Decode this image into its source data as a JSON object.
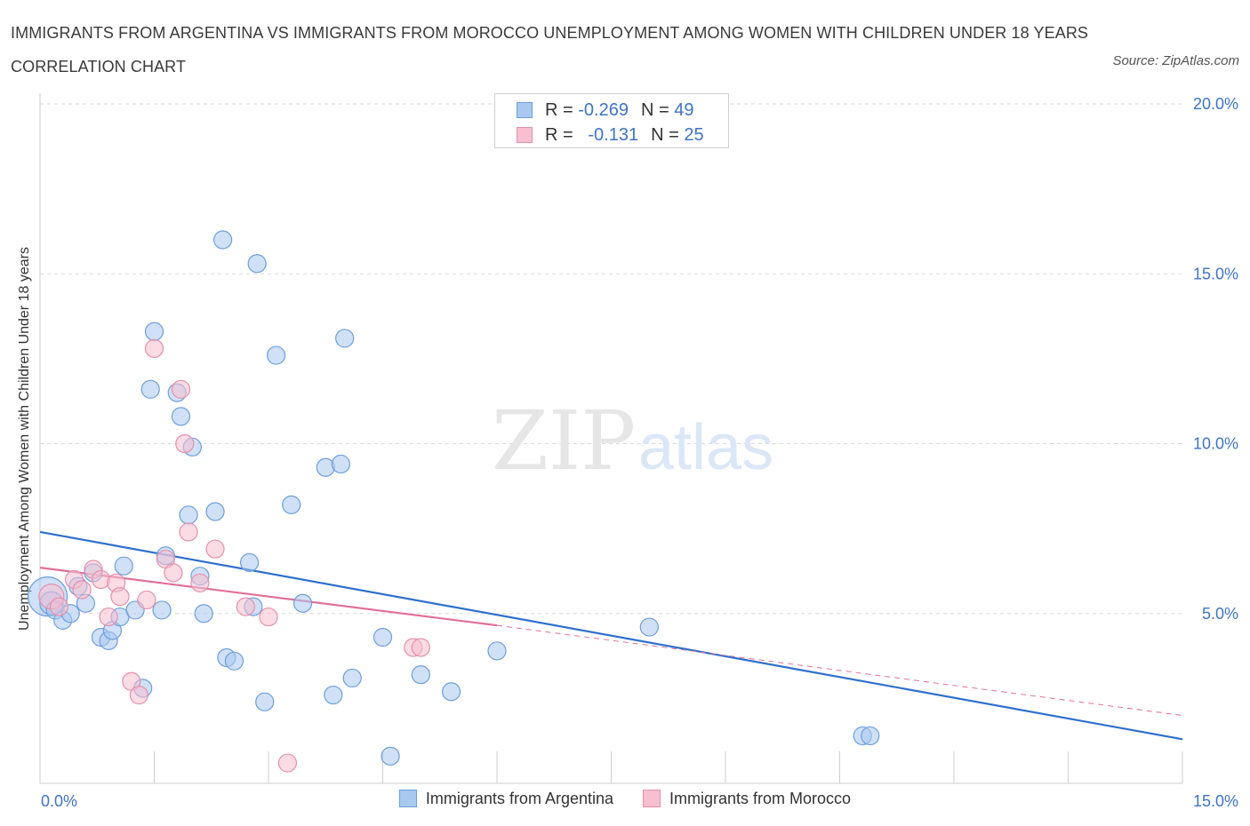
{
  "title": "IMMIGRANTS FROM ARGENTINA VS IMMIGRANTS FROM MOROCCO UNEMPLOYMENT AMONG WOMEN WITH CHILDREN UNDER 18 YEARS CORRELATION CHART",
  "source": "Source: ZipAtlas.com",
  "watermark": {
    "zip": "ZIP",
    "atlas": "atlas"
  },
  "correlation_legend": [
    {
      "r_label": "R =",
      "r_value": "-0.269",
      "n_label": "N =",
      "n_value": "49",
      "color": "#a9c8f0",
      "border": "#6d9edb"
    },
    {
      "r_label": "R =",
      "r_value": "-0.131",
      "n_label": "N =",
      "n_value": "25",
      "color": "#f7bfd0",
      "border": "#e490ab"
    }
  ],
  "bottom_legend": [
    {
      "label": "Immigrants from Argentina",
      "color": "#a9c8f0",
      "border": "#6d9edb"
    },
    {
      "label": "Immigrants from Morocco",
      "color": "#f7bfd0",
      "border": "#e490ab"
    }
  ],
  "chart_data": {
    "type": "scatter",
    "xlabel": "",
    "ylabel": "Unemployment Among Women with Children Under 18 years",
    "xlim": [
      0,
      15
    ],
    "ylim": [
      0,
      20
    ],
    "x_tick_labels": [
      {
        "value": 0,
        "label": "0.0%"
      },
      {
        "value": 15,
        "label": "15.0%"
      }
    ],
    "y_tick_labels": [
      {
        "value": 5,
        "label": "5.0%"
      },
      {
        "value": 10,
        "label": "10.0%"
      },
      {
        "value": 15,
        "label": "15.0%"
      },
      {
        "value": 20,
        "label": "20.0%"
      }
    ],
    "x_minor_ticks": [
      1.5,
      3.0,
      4.5,
      6.0,
      7.5,
      9.0,
      10.5,
      12.0,
      13.5,
      15.0
    ],
    "grid": true,
    "series": [
      {
        "name": "Immigrants from Argentina",
        "color": "#a9c8f0",
        "stroke": "#6d9edb",
        "trend_color": "#2f6fcd",
        "trend": {
          "x": [
            0,
            15
          ],
          "y": [
            7.4,
            1.3
          ]
        },
        "points": [
          [
            0.1,
            5.5
          ],
          [
            0.15,
            5.3
          ],
          [
            0.2,
            5.1
          ],
          [
            0.3,
            4.8
          ],
          [
            0.4,
            5.0
          ],
          [
            0.5,
            5.8
          ],
          [
            0.6,
            5.3
          ],
          [
            0.7,
            6.2
          ],
          [
            0.8,
            4.3
          ],
          [
            0.9,
            4.2
          ],
          [
            0.95,
            4.5
          ],
          [
            1.05,
            4.9
          ],
          [
            1.1,
            6.4
          ],
          [
            1.25,
            5.1
          ],
          [
            1.35,
            2.8
          ],
          [
            1.45,
            11.6
          ],
          [
            1.5,
            13.3
          ],
          [
            1.6,
            5.1
          ],
          [
            1.65,
            6.7
          ],
          [
            1.8,
            11.5
          ],
          [
            1.85,
            10.8
          ],
          [
            1.95,
            7.9
          ],
          [
            2.0,
            9.9
          ],
          [
            2.1,
            6.1
          ],
          [
            2.15,
            5.0
          ],
          [
            2.3,
            8.0
          ],
          [
            2.4,
            16.0
          ],
          [
            2.45,
            3.7
          ],
          [
            2.55,
            3.6
          ],
          [
            2.75,
            6.5
          ],
          [
            2.8,
            5.2
          ],
          [
            2.85,
            15.3
          ],
          [
            2.95,
            2.4
          ],
          [
            3.1,
            12.6
          ],
          [
            3.3,
            8.2
          ],
          [
            3.45,
            5.3
          ],
          [
            3.75,
            9.3
          ],
          [
            3.85,
            2.6
          ],
          [
            3.95,
            9.4
          ],
          [
            4.0,
            13.1
          ],
          [
            4.1,
            3.1
          ],
          [
            4.5,
            4.3
          ],
          [
            4.6,
            0.8
          ],
          [
            5.0,
            3.2
          ],
          [
            5.4,
            2.7
          ],
          [
            6.0,
            3.9
          ],
          [
            8.0,
            4.6
          ],
          [
            10.8,
            1.4
          ],
          [
            10.9,
            1.4
          ]
        ],
        "point_sizes": [
          22,
          13,
          10,
          10,
          10,
          10,
          10,
          10,
          10,
          10,
          10,
          10,
          10,
          10,
          10,
          10,
          10,
          10,
          10,
          10,
          10,
          10,
          10,
          10,
          10,
          10,
          10,
          10,
          10,
          10,
          10,
          10,
          10,
          10,
          10,
          10,
          10,
          10,
          10,
          10,
          10,
          10,
          10,
          10,
          10,
          10,
          10,
          10,
          10
        ]
      },
      {
        "name": "Immigrants from Morocco",
        "color": "#f7bfd0",
        "stroke": "#e490ab",
        "trend_color": "#e0709a",
        "trend": {
          "x": [
            0,
            6.0
          ],
          "y": [
            6.35,
            4.65
          ]
        },
        "trend_extension": {
          "x": [
            6.0,
            15
          ],
          "y": [
            4.65,
            2.0
          ]
        },
        "points": [
          [
            0.15,
            5.5
          ],
          [
            0.25,
            5.2
          ],
          [
            0.45,
            6.0
          ],
          [
            0.55,
            5.7
          ],
          [
            0.7,
            6.3
          ],
          [
            0.8,
            6.0
          ],
          [
            0.9,
            4.9
          ],
          [
            1.0,
            5.9
          ],
          [
            1.05,
            5.5
          ],
          [
            1.2,
            3.0
          ],
          [
            1.3,
            2.6
          ],
          [
            1.4,
            5.4
          ],
          [
            1.5,
            12.8
          ],
          [
            1.65,
            6.6
          ],
          [
            1.75,
            6.2
          ],
          [
            1.85,
            11.6
          ],
          [
            1.9,
            10.0
          ],
          [
            1.95,
            7.4
          ],
          [
            2.1,
            5.9
          ],
          [
            2.3,
            6.9
          ],
          [
            2.7,
            5.2
          ],
          [
            3.0,
            4.9
          ],
          [
            3.25,
            0.6
          ],
          [
            4.9,
            4.0
          ],
          [
            5.0,
            4.0
          ]
        ],
        "point_sizes": [
          14,
          10,
          10,
          10,
          10,
          10,
          10,
          10,
          10,
          10,
          10,
          10,
          10,
          10,
          10,
          10,
          10,
          10,
          10,
          10,
          10,
          10,
          10,
          10,
          10
        ]
      }
    ]
  }
}
